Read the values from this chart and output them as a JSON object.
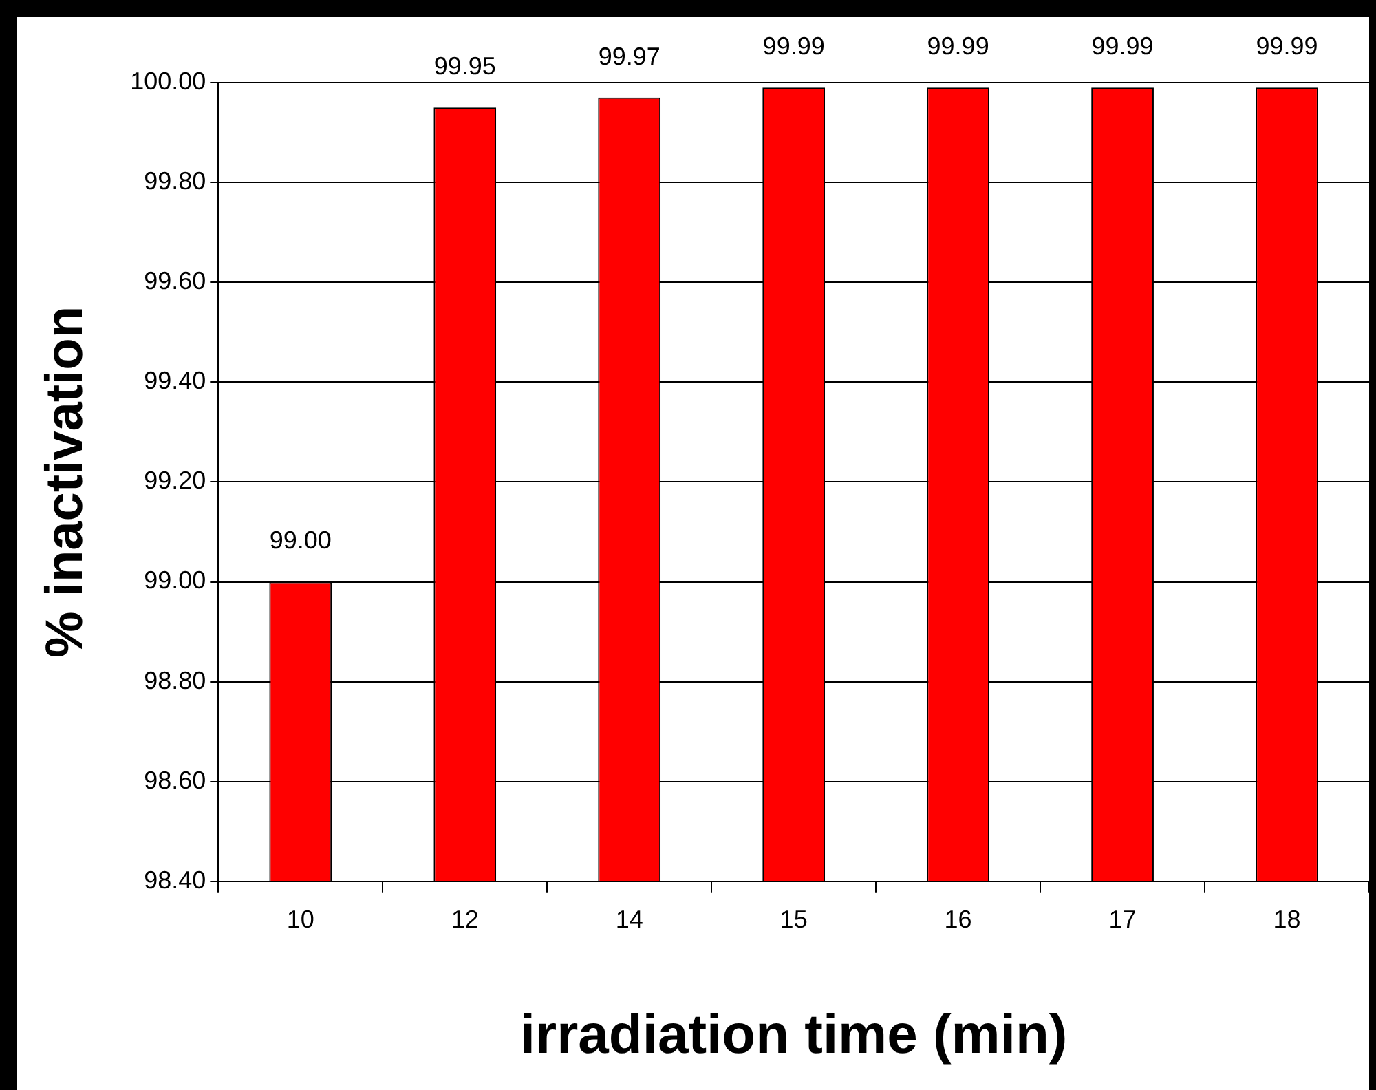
{
  "chart_data": {
    "type": "bar",
    "xlabel": "irradiation time (min)",
    "ylabel": "% inactivation",
    "categories": [
      "10",
      "12",
      "14",
      "15",
      "16",
      "17",
      "18"
    ],
    "values": [
      99.0,
      99.95,
      99.97,
      99.99,
      99.99,
      99.99,
      99.99
    ],
    "value_labels": [
      "99.00",
      "99.95",
      "99.97",
      "99.99",
      "99.99",
      "99.99",
      "99.99"
    ],
    "color": "#ff0000",
    "ylim": [
      98.4,
      100.0
    ],
    "yticks": [
      {
        "value": 98.4,
        "label": "98.40"
      },
      {
        "value": 98.6,
        "label": "98.60"
      },
      {
        "value": 98.8,
        "label": "98.80"
      },
      {
        "value": 99.0,
        "label": "99.00"
      },
      {
        "value": 99.2,
        "label": "99.20"
      },
      {
        "value": 99.4,
        "label": "99.40"
      },
      {
        "value": 99.6,
        "label": "99.60"
      },
      {
        "value": 99.8,
        "label": "99.80"
      },
      {
        "value": 100.0,
        "label": "100.00"
      }
    ],
    "grid": "y",
    "legend": false
  }
}
